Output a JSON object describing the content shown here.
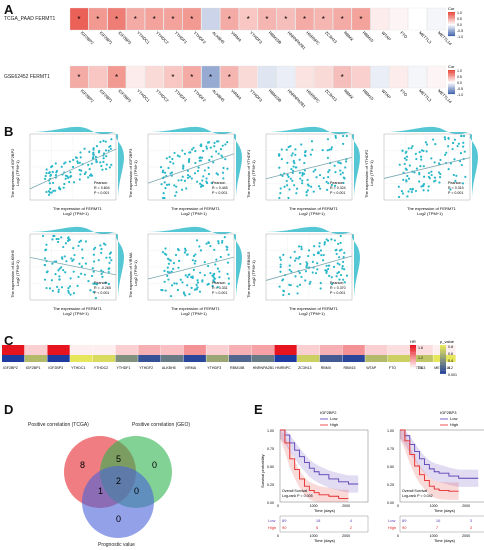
{
  "panel_labels": {
    "a": "A",
    "b": "B",
    "c": "C",
    "d": "D",
    "e": "E"
  },
  "panel_a": {
    "row1_label": "TCGA_PAAD FERMT1",
    "row2_label": "GSE62452 FERMT1",
    "legend_title": "Cor",
    "legend_ticks": [
      "1.0",
      "0.5",
      "0.0",
      "-0.5",
      "-1.0"
    ],
    "colors": {
      "pos": "#e8463a",
      "neg": "#2f55a5",
      "mid": "#ffffff"
    },
    "genes": [
      "IGF2BP2",
      "IGF2BP1",
      "IGF2BP3",
      "YTHDC1",
      "YTHDC2",
      "YTHDF1",
      "YTHDF2",
      "ALKBH5",
      "VIRMA",
      "YTHDF3",
      "RBM15B",
      "HNRNPA2B1",
      "HNRNPC",
      "ZC3H13",
      "RBMX",
      "RBM15",
      "WTAP",
      "FTO",
      "METTL3",
      "METTL14"
    ],
    "row1": {
      "cor": [
        0.85,
        0.55,
        0.7,
        0.45,
        0.5,
        0.5,
        0.55,
        -0.25,
        0.45,
        0.3,
        0.4,
        0.35,
        0.45,
        0.4,
        0.45,
        0.5,
        0.1,
        0.05,
        0.0,
        -0.05
      ],
      "star": [
        true,
        true,
        true,
        true,
        true,
        true,
        true,
        false,
        true,
        true,
        true,
        true,
        true,
        true,
        true,
        true,
        false,
        false,
        false,
        false
      ]
    },
    "row2": {
      "cor": [
        0.45,
        0.3,
        0.55,
        0.1,
        0.2,
        0.3,
        0.45,
        -0.5,
        0.4,
        0.2,
        -0.15,
        -0.1,
        0.15,
        0.2,
        0.35,
        0.25,
        -0.1,
        0.1,
        -0.05,
        0.05
      ],
      "star": [
        true,
        false,
        true,
        false,
        false,
        true,
        true,
        true,
        true,
        false,
        false,
        false,
        false,
        false,
        true,
        false,
        false,
        false,
        false,
        false
      ]
    },
    "star_symbol": "*"
  },
  "panel_b": {
    "color": "#29b8c9",
    "xlabel_line1": "The expression of FERMT1",
    "xlabel_line2": "Log2 (TPM+1)",
    "method": "Pearson",
    "plots": [
      {
        "ylabel": "The expression of IGF2BP2",
        "ylabel2": "Log2 (TPM+1)",
        "r": "R = 0.604",
        "p": "P < 0.001"
      },
      {
        "ylabel": "The expression of IGF2BP3",
        "ylabel2": "Log2 (TPM+1)",
        "r": "R = 0.445",
        "p": "P < 0.001"
      },
      {
        "ylabel": "The expression of YTHDF1",
        "ylabel2": "Log2 (TPM+1)",
        "r": "R = 0.324",
        "p": "P < 0.001"
      },
      {
        "ylabel": "The expression of YTHDF2",
        "ylabel2": "Log2 (TPM+1)",
        "r": "R = 0.315",
        "p": "P < 0.001"
      },
      {
        "ylabel": "The expression of ALKBH5",
        "ylabel2": "Log2 (TPM+1)",
        "r": "R = -0.265",
        "p": "P < 0.001"
      },
      {
        "ylabel": "The expression of VIRMA",
        "ylabel2": "Log2 (TPM+1)",
        "r": "R = 0.331",
        "p": "P < 0.001"
      },
      {
        "ylabel": "The expression of RBM15",
        "ylabel2": "Log2 (TPM+1)",
        "r": "R = 0.370",
        "p": "P < 0.001"
      }
    ]
  },
  "panel_c": {
    "legend_hr_title": "HR",
    "legend_hr_ticks": [
      "1.6",
      "1.2",
      "0.8"
    ],
    "legend_p_title": "p_value",
    "legend_p_ticks": [
      "0.8",
      "0.6",
      "0.4",
      "0.2",
      "0.001"
    ],
    "genes": [
      "IGF2BP2",
      "IGF2BP1",
      "IGF2BP3",
      "YTHDC1",
      "YTHDC2",
      "YTHDF1",
      "YTHDF2",
      "ALKBH5",
      "VIRMA",
      "YTHDF3",
      "RBM15B",
      "HNRNPA2B1",
      "HNRNPC",
      "ZC3H13",
      "RBMX",
      "RBM15",
      "WTAP",
      "FTO",
      "METTL3",
      "METTL14"
    ],
    "hr": [
      1.7,
      1.1,
      1.7,
      1.0,
      1.0,
      1.1,
      1.2,
      1.15,
      1.3,
      1.1,
      1.2,
      1.25,
      1.7,
      1.1,
      1.2,
      1.3,
      1.1,
      1.05,
      1.05,
      1.0
    ],
    "pval": [
      0.001,
      0.6,
      0.001,
      0.8,
      0.75,
      0.4,
      0.1,
      0.3,
      0.05,
      0.5,
      0.2,
      0.3,
      0.001,
      0.7,
      0.15,
      0.05,
      0.6,
      0.7,
      0.65,
      0.8
    ]
  },
  "panel_d": {
    "set1": "Positive correlation (TCGA)",
    "set2": "Positive correlation (GEO)",
    "set3": "Prognostic value",
    "counts": {
      "only1": "8",
      "only2": "0",
      "only3": "0",
      "s12": "5",
      "s13": "1",
      "s23": "0",
      "s123": "2"
    },
    "colors": {
      "s1": "#e8464b",
      "s2": "#2fb24e",
      "s3": "#4a62d8"
    }
  },
  "panel_e": {
    "ylabel": "Survival probability",
    "xlabel": "Time (days)",
    "y_ticks": [
      "1.00",
      "0.75",
      "0.50",
      "0.25",
      "0.00"
    ],
    "x_ticks": [
      "0",
      "1000",
      "2000"
    ],
    "risk_labels": [
      "Low",
      "High"
    ],
    "colors": {
      "low": "#5b3fb5",
      "high": "#e62a2a"
    },
    "plots": [
      {
        "gene": "IGF2BP2",
        "legend_low": "Low",
        "legend_high": "High",
        "stat1": "Overall Survival",
        "stat2": "Log-rank  P = 0.005",
        "risk_low": [
          "89",
          "18",
          "4"
        ],
        "risk_high": [
          "90",
          "5",
          "2"
        ],
        "chart_data": {
          "type": "line",
          "x_range": [
            0,
            2700
          ],
          "y_range": [
            0,
            1
          ],
          "series": [
            {
              "name": "Low",
              "x": [
                0,
                150,
                300,
                450,
                600,
                750,
                900,
                1050,
                1200,
                1500,
                1800,
                2100,
                2400
              ],
              "y": [
                1.0,
                0.93,
                0.82,
                0.72,
                0.63,
                0.55,
                0.47,
                0.42,
                0.38,
                0.32,
                0.28,
                0.25,
                0.25
              ]
            },
            {
              "name": "High",
              "x": [
                0,
                150,
                300,
                450,
                600,
                750,
                900,
                1050,
                1200,
                1500,
                1800,
                2100
              ],
              "y": [
                1.0,
                0.82,
                0.6,
                0.45,
                0.32,
                0.22,
                0.16,
                0.13,
                0.1,
                0.08,
                0.05,
                0.05
              ]
            }
          ]
        }
      },
      {
        "gene": "IGF2BP3",
        "legend_low": "Low",
        "legend_high": "High",
        "stat1": "Overall Survival",
        "stat2": "Log-rank  P = 0.042",
        "risk_low": [
          "89",
          "16",
          "3"
        ],
        "risk_high": [
          "90",
          "7",
          "3"
        ],
        "chart_data": {
          "type": "line",
          "x_range": [
            0,
            2700
          ],
          "y_range": [
            0,
            1
          ],
          "series": [
            {
              "name": "Low",
              "x": [
                0,
                150,
                300,
                450,
                600,
                750,
                900,
                1050,
                1200,
                1500,
                1800,
                2100,
                2400
              ],
              "y": [
                1.0,
                0.92,
                0.8,
                0.7,
                0.6,
                0.52,
                0.46,
                0.42,
                0.4,
                0.36,
                0.33,
                0.33,
                0.33
              ]
            },
            {
              "name": "High",
              "x": [
                0,
                150,
                300,
                450,
                600,
                750,
                900,
                1050,
                1200,
                1500,
                1800
              ],
              "y": [
                1.0,
                0.85,
                0.66,
                0.5,
                0.38,
                0.3,
                0.22,
                0.18,
                0.16,
                0.15,
                0.15
              ]
            }
          ]
        }
      }
    ]
  }
}
